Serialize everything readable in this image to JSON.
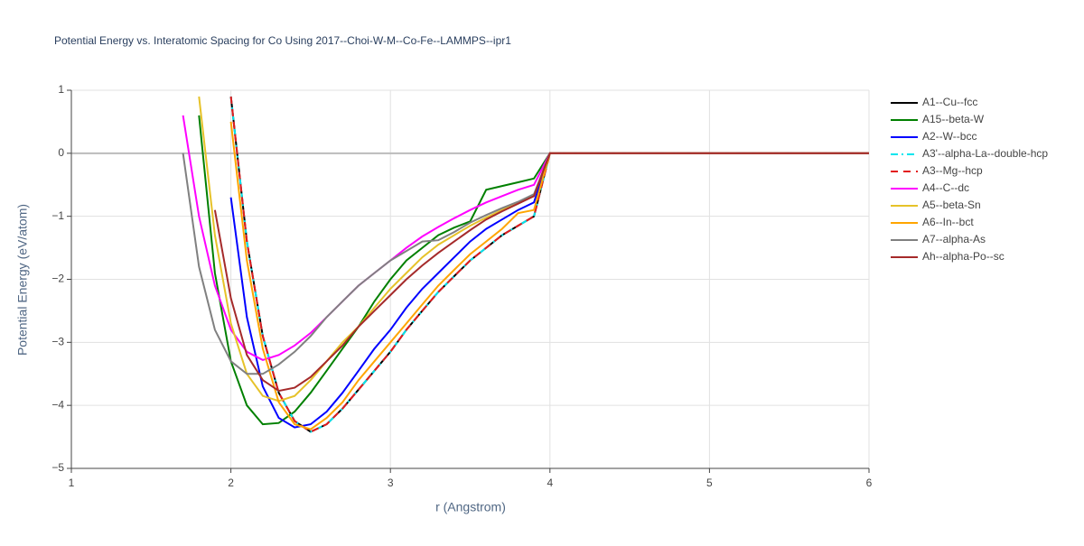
{
  "chart_data": {
    "type": "line",
    "title": "Potential Energy vs. Interatomic Spacing for Co Using 2017--Choi-W-M--Co-Fe--LAMMPS--ipr1",
    "x_label": "r (Angstrom)",
    "y_label": "Potential Energy (eV/atom)",
    "xlim": [
      1,
      6
    ],
    "ylim": [
      -5,
      1
    ],
    "xticks": [
      1,
      2,
      3,
      4,
      5,
      6
    ],
    "yticks": [
      {
        "value": -5,
        "label": "−5"
      },
      {
        "value": -4,
        "label": "−4"
      },
      {
        "value": -3,
        "label": "−3"
      },
      {
        "value": -2,
        "label": "−2"
      },
      {
        "value": -1,
        "label": "−1"
      },
      0,
      1
    ],
    "grid": true,
    "x": [
      1.7,
      1.8,
      1.9,
      2.0,
      2.1,
      2.2,
      2.3,
      2.4,
      2.5,
      2.6,
      2.7,
      2.8,
      2.9,
      3.0,
      3.1,
      3.2,
      3.3,
      3.4,
      3.5,
      3.6,
      3.7,
      3.8,
      3.9,
      4.0,
      4.5,
      5.0,
      5.5,
      6.0
    ],
    "series": [
      {
        "name": "A1--Cu--fcc",
        "color": "#000000",
        "dash": "solid",
        "values": [
          null,
          null,
          null,
          0.9,
          -1.4,
          -2.9,
          -3.8,
          -4.25,
          -4.42,
          -4.3,
          -4.05,
          -3.75,
          -3.45,
          -3.15,
          -2.8,
          -2.5,
          -2.2,
          -1.95,
          -1.7,
          -1.5,
          -1.3,
          -1.15,
          -1.0,
          0,
          0,
          0,
          0,
          0
        ]
      },
      {
        "name": "A15--beta-W",
        "color": "#008000",
        "dash": "solid",
        "values": [
          null,
          0.6,
          -1.9,
          -3.3,
          -4.0,
          -4.3,
          -4.28,
          -4.1,
          -3.8,
          -3.45,
          -3.1,
          -2.75,
          -2.35,
          -2.0,
          -1.7,
          -1.5,
          -1.3,
          -1.18,
          -1.08,
          -0.58,
          -0.52,
          -0.46,
          -0.4,
          0,
          0,
          0,
          0,
          0
        ]
      },
      {
        "name": "A2--W--bcc",
        "color": "#0000ff",
        "dash": "solid",
        "values": [
          null,
          null,
          null,
          -0.7,
          -2.6,
          -3.7,
          -4.2,
          -4.35,
          -4.3,
          -4.1,
          -3.8,
          -3.45,
          -3.1,
          -2.8,
          -2.45,
          -2.15,
          -1.9,
          -1.65,
          -1.4,
          -1.2,
          -1.05,
          -0.9,
          -0.78,
          0,
          0,
          0,
          0,
          0
        ]
      },
      {
        "name": "A3'--alpha-La--double-hcp",
        "color": "#00e5ee",
        "dash": "dashdot",
        "values": [
          null,
          null,
          null,
          0.9,
          -1.4,
          -2.9,
          -3.8,
          -4.25,
          -4.42,
          -4.3,
          -4.05,
          -3.75,
          -3.45,
          -3.15,
          -2.8,
          -2.5,
          -2.2,
          -1.95,
          -1.7,
          -1.5,
          -1.3,
          -1.15,
          -1.0,
          0,
          0,
          0,
          0,
          0
        ]
      },
      {
        "name": "A3--Mg--hcp",
        "color": "#e31a1c",
        "dash": "dash",
        "values": [
          null,
          null,
          null,
          0.9,
          -1.4,
          -2.9,
          -3.8,
          -4.25,
          -4.42,
          -4.3,
          -4.05,
          -3.75,
          -3.45,
          -3.15,
          -2.8,
          -2.5,
          -2.2,
          -1.95,
          -1.7,
          -1.5,
          -1.3,
          -1.15,
          -1.0,
          0,
          0,
          0,
          0,
          0
        ]
      },
      {
        "name": "A4--C--dc",
        "color": "#ff00ff",
        "dash": "solid",
        "values": [
          0.6,
          -1.0,
          -2.1,
          -2.8,
          -3.15,
          -3.28,
          -3.2,
          -3.05,
          -2.85,
          -2.6,
          -2.35,
          -2.1,
          -1.9,
          -1.7,
          -1.5,
          -1.32,
          -1.17,
          -1.03,
          -0.9,
          -0.78,
          -0.68,
          -0.58,
          -0.5,
          0,
          0,
          0,
          0,
          0
        ]
      },
      {
        "name": "A5--beta-Sn",
        "color": "#e6c229",
        "dash": "solid",
        "values": [
          null,
          0.9,
          -1.3,
          -2.7,
          -3.5,
          -3.85,
          -3.93,
          -3.85,
          -3.6,
          -3.3,
          -3.0,
          -2.75,
          -2.45,
          -2.15,
          -1.9,
          -1.65,
          -1.45,
          -1.3,
          -1.15,
          -1.02,
          -0.9,
          -0.78,
          -0.68,
          0,
          0,
          0,
          0,
          0
        ]
      },
      {
        "name": "A6--In--bct",
        "color": "#ffa500",
        "dash": "solid",
        "values": [
          null,
          null,
          null,
          0.5,
          -1.7,
          -3.1,
          -3.95,
          -4.3,
          -4.38,
          -4.2,
          -3.95,
          -3.6,
          -3.3,
          -3.0,
          -2.7,
          -2.4,
          -2.1,
          -1.85,
          -1.6,
          -1.4,
          -1.2,
          -0.95,
          -0.9,
          0,
          0,
          0,
          0,
          0
        ]
      },
      {
        "name": "A7--alpha-As",
        "color": "#808080",
        "dash": "solid",
        "values": [
          0.0,
          -1.8,
          -2.8,
          -3.3,
          -3.5,
          -3.5,
          -3.35,
          -3.15,
          -2.9,
          -2.6,
          -2.35,
          -2.1,
          -1.9,
          -1.7,
          -1.55,
          -1.4,
          -1.38,
          -1.25,
          -1.1,
          -0.98,
          -0.87,
          -0.77,
          -0.65,
          0,
          0,
          0,
          0,
          0
        ]
      },
      {
        "name": "Ah--alpha-Po--sc",
        "color": "#a52a2a",
        "dash": "solid",
        "values": [
          null,
          null,
          -0.9,
          -2.3,
          -3.2,
          -3.6,
          -3.77,
          -3.72,
          -3.55,
          -3.3,
          -3.05,
          -2.75,
          -2.5,
          -2.25,
          -2.0,
          -1.78,
          -1.58,
          -1.4,
          -1.22,
          -1.05,
          -0.92,
          -0.8,
          -0.68,
          0,
          0,
          0,
          0,
          0
        ]
      }
    ]
  }
}
